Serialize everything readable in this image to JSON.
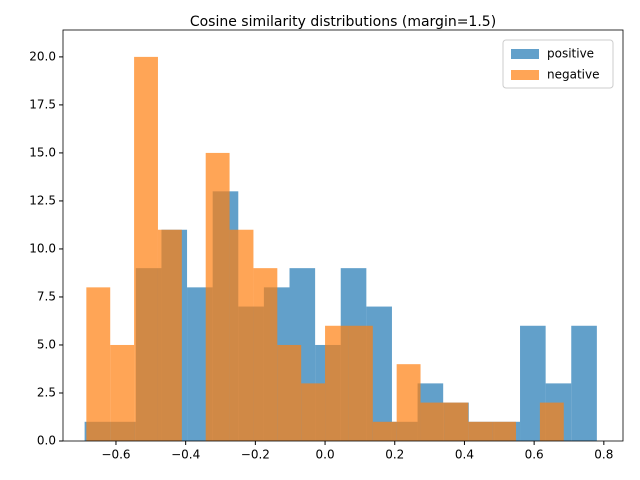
{
  "chart_data": {
    "type": "histogram",
    "title": "Cosine similarity distributions (margin=1.5)",
    "series": [
      {
        "name": "positive",
        "color": "#1f77b4",
        "opacity": 0.7,
        "bins": [
          -0.69,
          -0.6165,
          -0.543,
          -0.4695,
          -0.396,
          -0.3225,
          -0.249,
          -0.1755,
          -0.102,
          -0.0285,
          0.045,
          0.1185,
          0.192,
          0.2655,
          0.339,
          0.4125,
          0.486,
          0.5595,
          0.633,
          0.7065,
          0.78
        ],
        "values": [
          1,
          1,
          9,
          11,
          8,
          13,
          7,
          8,
          9,
          5,
          9,
          7,
          1,
          3,
          2,
          1,
          1,
          6,
          3,
          6
        ]
      },
      {
        "name": "negative",
        "color": "#ff7f0e",
        "opacity": 0.7,
        "bins": [
          -0.685,
          -0.6165,
          -0.548,
          -0.4795,
          -0.411,
          -0.3425,
          -0.274,
          -0.2055,
          -0.137,
          -0.0685,
          0,
          0.0685,
          0.137,
          0.2055,
          0.274,
          0.3425,
          0.411,
          0.4795,
          0.548,
          0.6165,
          0.685
        ],
        "values": [
          8,
          5,
          20,
          11,
          0,
          15,
          11,
          9,
          5,
          3,
          6,
          6,
          1,
          4,
          2,
          2,
          1,
          1,
          0,
          2
        ]
      }
    ],
    "xlim": [
      -0.752,
      0.855
    ],
    "ylim": [
      0,
      21.4
    ],
    "xticks": [
      {
        "value": -0.6,
        "label": "−0.6"
      },
      {
        "value": -0.4,
        "label": "−0.4"
      },
      {
        "value": -0.2,
        "label": "−0.2"
      },
      {
        "value": 0,
        "label": "0.0"
      },
      0.2,
      0.4,
      0.6,
      0.8
    ],
    "yticks": [
      {
        "value": 0,
        "label": "0.0"
      },
      2.5,
      {
        "value": 5,
        "label": "5.0"
      },
      7.5,
      {
        "value": 10,
        "label": "10.0"
      },
      12.5,
      {
        "value": 15,
        "label": "15.0"
      },
      17.5,
      {
        "value": 20,
        "label": "20.0"
      }
    ],
    "legend": "upper right"
  }
}
